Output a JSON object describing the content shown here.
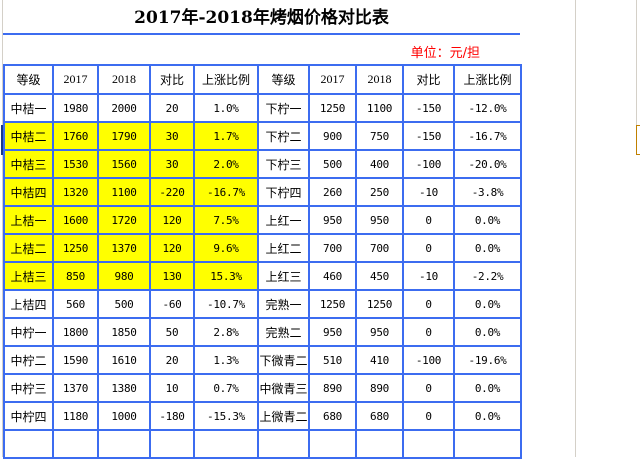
{
  "title": "2017年-2018年烤烟价格对比表",
  "unit": "单位：元/担",
  "headers": [
    "等级",
    "2017",
    "2018",
    "对比",
    "上涨比例",
    "等级",
    "2017",
    "2018",
    "对比",
    "上涨比例"
  ],
  "highlight_color": "#ffff00",
  "border_color": "#3c6cf0",
  "rows": [
    {
      "hl": false,
      "cells": [
        "中桔一",
        "1980",
        "2000",
        "20",
        "1.0%",
        "下柠一",
        "1250",
        "1100",
        "-150",
        "-12.0%"
      ]
    },
    {
      "hl": true,
      "cells": [
        "中桔二",
        "1760",
        "1790",
        "30",
        "1.7%",
        "下柠二",
        "900",
        "750",
        "-150",
        "-16.7%"
      ]
    },
    {
      "hl": true,
      "cells": [
        "中桔三",
        "1530",
        "1560",
        "30",
        "2.0%",
        "下柠三",
        "500",
        "400",
        "-100",
        "-20.0%"
      ]
    },
    {
      "hl": true,
      "cells": [
        "中桔四",
        "1320",
        "1100",
        "-220",
        "-16.7%",
        "下柠四",
        "260",
        "250",
        "-10",
        "-3.8%"
      ]
    },
    {
      "hl": true,
      "cells": [
        "上桔一",
        "1600",
        "1720",
        "120",
        "7.5%",
        "上红一",
        "950",
        "950",
        "0",
        "0.0%"
      ]
    },
    {
      "hl": true,
      "cells": [
        "上桔二",
        "1250",
        "1370",
        "120",
        "9.6%",
        "上红二",
        "700",
        "700",
        "0",
        "0.0%"
      ]
    },
    {
      "hl": true,
      "cells": [
        "上桔三",
        "850",
        "980",
        "130",
        "15.3%",
        "上红三",
        "460",
        "450",
        "-10",
        "-2.2%"
      ]
    },
    {
      "hl": false,
      "cells": [
        "上桔四",
        "560",
        "500",
        "-60",
        "-10.7%",
        "完熟一",
        "1250",
        "1250",
        "0",
        "0.0%"
      ]
    },
    {
      "hl": false,
      "cells": [
        "中柠一",
        "1800",
        "1850",
        "50",
        "2.8%",
        "完熟二",
        "950",
        "950",
        "0",
        "0.0%"
      ]
    },
    {
      "hl": false,
      "cells": [
        "中柠二",
        "1590",
        "1610",
        "20",
        "1.3%",
        "下微青二",
        "510",
        "410",
        "-100",
        "-19.6%"
      ]
    },
    {
      "hl": false,
      "cells": [
        "中柠三",
        "1370",
        "1380",
        "10",
        "0.7%",
        "中微青三",
        "890",
        "890",
        "0",
        "0.0%"
      ]
    },
    {
      "hl": false,
      "cells": [
        "中柠四",
        "1180",
        "1000",
        "-180",
        "-15.3%",
        "上微青二",
        "680",
        "680",
        "0",
        "0.0%"
      ]
    },
    {
      "hl": false,
      "cells": [
        "",
        "",
        "",
        "",
        "",
        "",
        "",
        "",
        "",
        ""
      ]
    }
  ]
}
